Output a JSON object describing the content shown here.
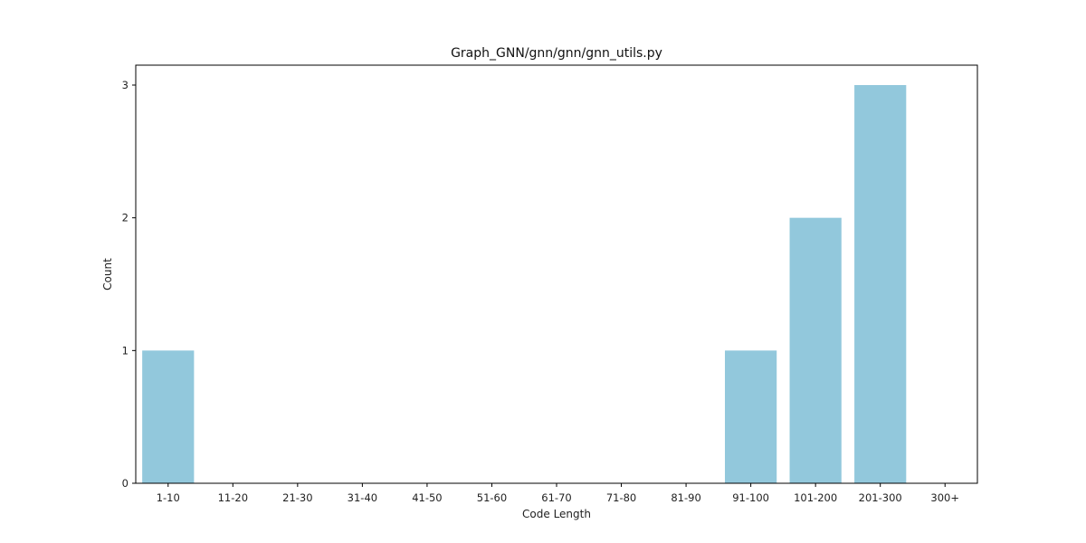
{
  "chart_data": {
    "type": "bar",
    "title": "Graph_GNN/gnn/gnn/gnn_utils.py",
    "xlabel": "Code Length",
    "ylabel": "Count",
    "categories": [
      "1-10",
      "11-20",
      "21-30",
      "31-40",
      "41-50",
      "51-60",
      "61-70",
      "71-80",
      "81-90",
      "91-100",
      "101-200",
      "201-300",
      "300+"
    ],
    "values": [
      1,
      0,
      0,
      0,
      0,
      0,
      0,
      0,
      0,
      1,
      2,
      3,
      0
    ],
    "ylim": [
      0,
      3.15
    ],
    "yticks": [
      "0",
      "1",
      "2",
      "3"
    ],
    "grid": false,
    "bar_color": "#92c8dc"
  }
}
